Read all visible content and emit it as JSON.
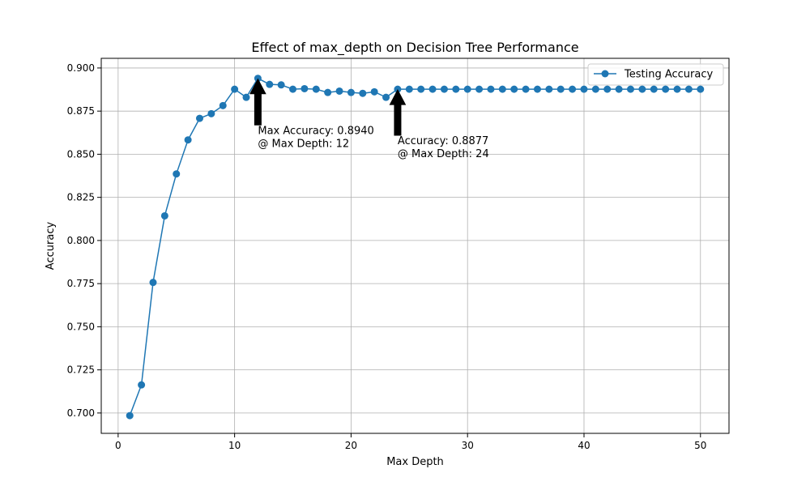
{
  "chart_data": {
    "type": "line",
    "title": "Effect of max_depth on Decision Tree Performance",
    "xlabel": "Max Depth",
    "ylabel": "Accuracy",
    "xlim": [
      -1.45,
      52.45
    ],
    "ylim": [
      0.6882,
      0.9056
    ],
    "xticks": [
      0,
      10,
      20,
      30,
      40,
      50
    ],
    "yticks": [
      0.7,
      0.725,
      0.75,
      0.775,
      0.8,
      0.825,
      0.85,
      0.875,
      0.9
    ],
    "xtick_labels": [
      "0",
      "10",
      "20",
      "30",
      "40",
      "50"
    ],
    "ytick_labels": [
      "0.700",
      "0.725",
      "0.750",
      "0.775",
      "0.800",
      "0.825",
      "0.850",
      "0.875",
      "0.900"
    ],
    "grid": true,
    "legend": {
      "placement": "top-right",
      "entries": [
        "Testing Accuracy"
      ]
    },
    "series": [
      {
        "name": "Testing Accuracy",
        "color": "#1f77b4",
        "marker": "circle",
        "x": [
          1,
          2,
          3,
          4,
          5,
          6,
          7,
          8,
          9,
          10,
          11,
          12,
          13,
          14,
          15,
          16,
          17,
          18,
          19,
          20,
          21,
          22,
          23,
          24,
          25,
          26,
          27,
          28,
          29,
          30,
          31,
          32,
          33,
          34,
          35,
          36,
          37,
          38,
          39,
          40,
          41,
          42,
          43,
          44,
          45,
          46,
          47,
          48,
          49,
          50
        ],
        "y": [
          0.6985,
          0.7163,
          0.7757,
          0.8143,
          0.8386,
          0.8583,
          0.8708,
          0.8735,
          0.8782,
          0.8877,
          0.883,
          0.894,
          0.8905,
          0.8902,
          0.8877,
          0.888,
          0.8877,
          0.8858,
          0.8866,
          0.8858,
          0.8853,
          0.8862,
          0.883,
          0.8877,
          0.8877,
          0.8877,
          0.8877,
          0.8877,
          0.8877,
          0.8877,
          0.8877,
          0.8877,
          0.8877,
          0.8877,
          0.8877,
          0.8877,
          0.8877,
          0.8877,
          0.8877,
          0.8877,
          0.8877,
          0.8877,
          0.8877,
          0.8877,
          0.8877,
          0.8877,
          0.8877,
          0.8877,
          0.8877,
          0.8877
        ]
      }
    ],
    "annotations": [
      {
        "lines": [
          "Max Accuracy: 0.8940",
          "@ Max Depth: 12"
        ],
        "point": [
          12,
          0.894
        ],
        "text_at": [
          12,
          0.8618
        ]
      },
      {
        "lines": [
          "Accuracy: 0.8877",
          "@ Max Depth: 24"
        ],
        "point": [
          24,
          0.8877
        ],
        "text_at": [
          24,
          0.8558
        ]
      }
    ],
    "colors": {
      "grid": "#b0b0b0",
      "axes": "#000000",
      "arrow": "#000000",
      "legend_border": "#cccccc"
    }
  }
}
